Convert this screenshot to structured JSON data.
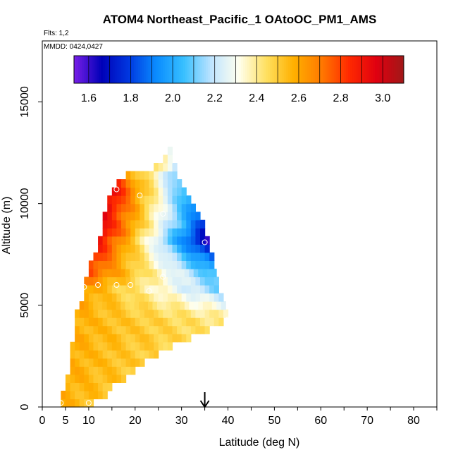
{
  "chart_data": {
    "type": "heatmap",
    "title": "ATOM4 Northeast_Pacific_1 OAtoOC_PM1_AMS",
    "notes": {
      "flights": "Flts: 1,2",
      "mmdd": "MMDD: 0424,0427"
    },
    "xlabel": "Latitude (deg N)",
    "ylabel": "Altitude (m)",
    "xlim": [
      0,
      85
    ],
    "ylim": [
      0,
      18000
    ],
    "x_tick_labels": [
      "0",
      "5",
      "10",
      "20",
      "30",
      "40",
      "50",
      "60",
      "70",
      "80"
    ],
    "x_tick_values": [
      0,
      5,
      10,
      20,
      30,
      40,
      50,
      60,
      70,
      80
    ],
    "y_tick_labels": [
      "0",
      "5000",
      "10000",
      "15000"
    ],
    "y_tick_values": [
      0,
      5000,
      10000,
      15000
    ],
    "grid": false,
    "arrow_marker_latitude": 35,
    "colorbar": {
      "range": [
        1.53,
        3.1
      ],
      "tick_labels": [
        "1.6",
        "1.8",
        "2.0",
        "2.2",
        "2.4",
        "2.6",
        "2.8",
        "3.0"
      ],
      "tick_values": [
        1.6,
        1.8,
        2.0,
        2.2,
        2.4,
        2.6,
        2.8,
        3.0
      ],
      "colors": [
        "#7a1fe8",
        "#0000b8",
        "#0038e0",
        "#0a8cff",
        "#38c0ff",
        "#bfe4ff",
        "#ffffee",
        "#ffe060",
        "#ffb000",
        "#ff7a00",
        "#ff2a00",
        "#e00010",
        "#a01818"
      ]
    },
    "field": {
      "altitude_bin_m": 400,
      "rows": [
        {
          "alt": 0,
          "x0": 4,
          "x1": 11,
          "left": 2.58,
          "right": 2.52
        },
        {
          "alt": 400,
          "x0": 4,
          "x1": 14,
          "left": 2.58,
          "right": 2.52
        },
        {
          "alt": 800,
          "x0": 5,
          "x1": 15,
          "left": 2.58,
          "right": 2.52
        },
        {
          "alt": 1200,
          "x0": 5,
          "x1": 18,
          "left": 2.58,
          "right": 2.52
        },
        {
          "alt": 1600,
          "x0": 6,
          "x1": 20,
          "left": 2.58,
          "right": 2.5
        },
        {
          "alt": 2000,
          "x0": 6,
          "x1": 22,
          "left": 2.58,
          "right": 2.5
        },
        {
          "alt": 2400,
          "x0": 6,
          "x1": 25,
          "left": 2.58,
          "right": 2.48
        },
        {
          "alt": 2800,
          "x0": 6,
          "x1": 28,
          "left": 2.58,
          "right": 2.47
        },
        {
          "alt": 3200,
          "x0": 7,
          "x1": 32,
          "left": 2.58,
          "right": 2.46
        },
        {
          "alt": 3600,
          "x0": 7,
          "x1": 36,
          "left": 2.58,
          "right": 2.43
        },
        {
          "alt": 4000,
          "x0": 7,
          "x1": 39,
          "left": 2.58,
          "right": 2.41
        },
        {
          "alt": 4400,
          "x0": 7,
          "x1": 40,
          "left": 2.58,
          "right": 2.36
        },
        {
          "alt": 4800,
          "x0": 8,
          "x1": 39.5,
          "left": 2.6,
          "right": 2.28
        },
        {
          "alt": 5200,
          "x0": 9,
          "x1": 39,
          "left": 2.6,
          "right": 2.2
        },
        {
          "alt": 5600,
          "x0": 9,
          "x1": 38,
          "left": 2.62,
          "right": 2.12
        },
        {
          "alt": 6000,
          "x0": 9,
          "x1": 38,
          "left": 2.7,
          "right": 2.08
        },
        {
          "alt": 6400,
          "x0": 10,
          "x1": 37.5,
          "left": 2.78,
          "right": 2.02
        },
        {
          "alt": 6800,
          "x0": 10,
          "x1": 37,
          "left": 2.82,
          "right": 1.92
        },
        {
          "alt": 7200,
          "x0": 11,
          "x1": 37,
          "left": 2.85,
          "right": 1.82
        },
        {
          "alt": 7600,
          "x0": 12,
          "x1": 36,
          "left": 2.88,
          "right": 1.72
        },
        {
          "alt": 8000,
          "x0": 12,
          "x1": 36,
          "left": 2.92,
          "right": 1.62
        },
        {
          "alt": 8400,
          "x0": 13,
          "x1": 35,
          "left": 2.95,
          "right": 1.7
        },
        {
          "alt": 8800,
          "x0": 13,
          "x1": 35,
          "left": 2.95,
          "right": 1.78
        },
        {
          "alt": 9200,
          "x0": 13,
          "x1": 34,
          "left": 2.95,
          "right": 1.85
        },
        {
          "alt": 9600,
          "x0": 14,
          "x1": 33,
          "left": 2.95,
          "right": 1.9
        },
        {
          "alt": 10000,
          "x0": 14,
          "x1": 32,
          "left": 2.95,
          "right": 1.95
        },
        {
          "alt": 10400,
          "x0": 15,
          "x1": 31,
          "left": 2.95,
          "right": 2.0
        },
        {
          "alt": 10800,
          "x0": 16,
          "x1": 30,
          "left": 2.85,
          "right": 2.05
        },
        {
          "alt": 11200,
          "x0": 18,
          "x1": 29,
          "left": 2.65,
          "right": 2.12
        },
        {
          "alt": 11600,
          "x0": 24,
          "x1": 29,
          "left": 2.5,
          "right": 2.15
        },
        {
          "alt": 12000,
          "x0": 26,
          "x1": 28,
          "left": 2.4,
          "right": 2.2
        },
        {
          "alt": 12400,
          "x0": 27,
          "x1": 28,
          "left": 2.3,
          "right": 2.2
        }
      ]
    },
    "points": [
      {
        "x": 4,
        "y": 200
      },
      {
        "x": 10,
        "y": 200
      },
      {
        "x": 16,
        "y": 10700
      },
      {
        "x": 21,
        "y": 10400
      },
      {
        "x": 26,
        "y": 9500
      },
      {
        "x": 35,
        "y": 8100
      },
      {
        "x": 26,
        "y": 6400
      },
      {
        "x": 9,
        "y": 5900
      },
      {
        "x": 12,
        "y": 6000
      },
      {
        "x": 16,
        "y": 6000
      },
      {
        "x": 19,
        "y": 6000
      },
      {
        "x": 23,
        "y": 5700
      },
      {
        "x": 40,
        "y": 4300
      }
    ]
  }
}
